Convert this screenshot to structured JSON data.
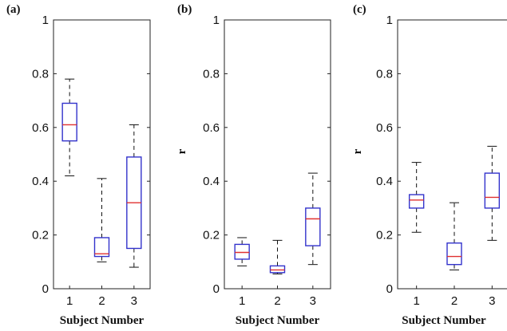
{
  "chart_data": [
    {
      "type": "box",
      "panel_label": "(a)",
      "categories": [
        "1",
        "2",
        "3"
      ],
      "boxes": [
        {
          "whisker_low": 0.42,
          "q1": 0.55,
          "median": 0.61,
          "q3": 0.69,
          "whisker_high": 0.78
        },
        {
          "whisker_low": 0.1,
          "q1": 0.12,
          "median": 0.13,
          "q3": 0.19,
          "whisker_high": 0.41
        },
        {
          "whisker_low": 0.08,
          "q1": 0.15,
          "median": 0.32,
          "q3": 0.49,
          "whisker_high": 0.61
        }
      ],
      "ylim": [
        0,
        1
      ],
      "yticks": [
        "0",
        "0.2",
        "0.4",
        "0.6",
        "0.8",
        "1"
      ],
      "xlabel": "Subject Number",
      "ylabel": "",
      "box_color": "#3333cc",
      "median_color": "#e03030",
      "whisker_style": "dashed black"
    },
    {
      "type": "box",
      "panel_label": "(b)",
      "categories": [
        "1",
        "2",
        "3"
      ],
      "boxes": [
        {
          "whisker_low": 0.085,
          "q1": 0.11,
          "median": 0.135,
          "q3": 0.165,
          "whisker_high": 0.19
        },
        {
          "whisker_low": 0.055,
          "q1": 0.06,
          "median": 0.07,
          "q3": 0.085,
          "whisker_high": 0.18
        },
        {
          "whisker_low": 0.09,
          "q1": 0.16,
          "median": 0.26,
          "q3": 0.3,
          "whisker_high": 0.43
        }
      ],
      "ylim": [
        0,
        1
      ],
      "yticks": [
        "0",
        "0.2",
        "0.4",
        "0.6",
        "0.8",
        "1"
      ],
      "xlabel": "Subject Number",
      "ylabel": "r",
      "box_color": "#3333cc",
      "median_color": "#e03030",
      "whisker_style": "dashed black"
    },
    {
      "type": "box",
      "panel_label": "(c)",
      "categories": [
        "1",
        "2",
        "3"
      ],
      "boxes": [
        {
          "whisker_low": 0.21,
          "q1": 0.3,
          "median": 0.33,
          "q3": 0.35,
          "whisker_high": 0.47
        },
        {
          "whisker_low": 0.07,
          "q1": 0.09,
          "median": 0.12,
          "q3": 0.17,
          "whisker_high": 0.32
        },
        {
          "whisker_low": 0.18,
          "q1": 0.3,
          "median": 0.34,
          "q3": 0.43,
          "whisker_high": 0.53
        }
      ],
      "ylim": [
        0,
        1
      ],
      "yticks": [
        "0",
        "0.2",
        "0.4",
        "0.6",
        "0.8",
        "1"
      ],
      "xlabel": "Subject Number",
      "ylabel": "r",
      "box_color": "#3333cc",
      "median_color": "#e03030",
      "whisker_style": "dashed black"
    }
  ]
}
